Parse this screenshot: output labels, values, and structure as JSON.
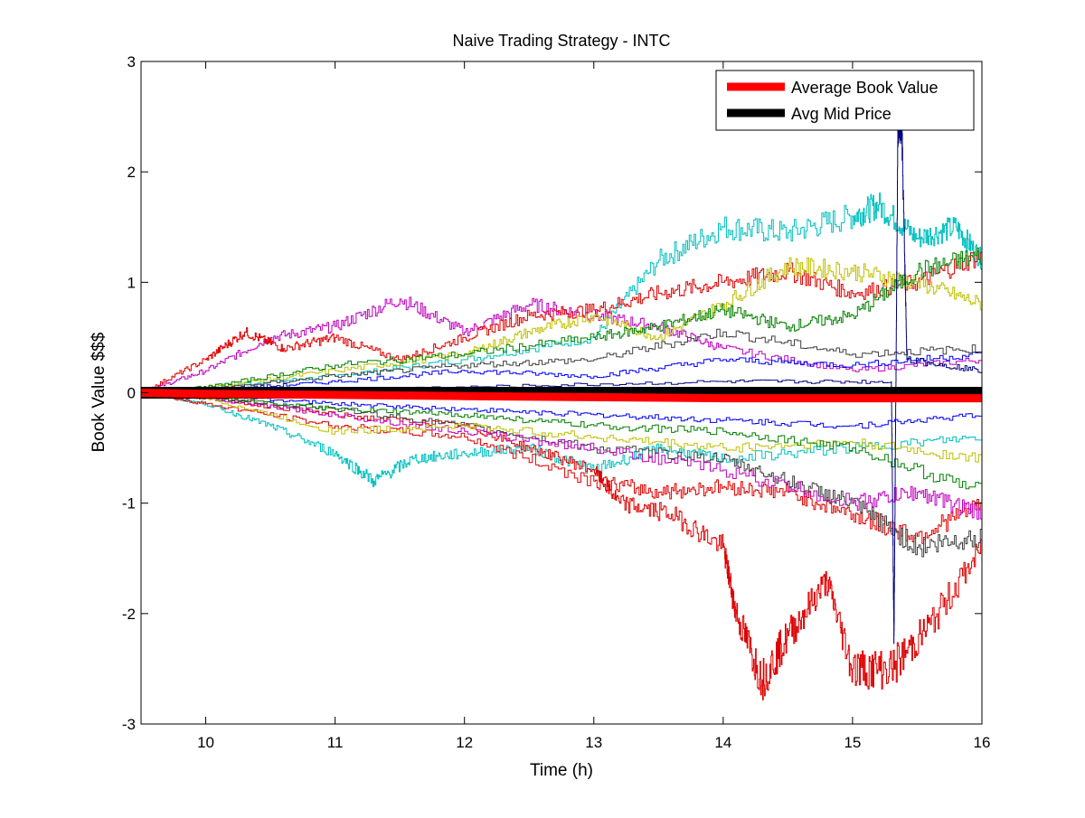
{
  "chart_data": {
    "type": "line",
    "title": "Naive Trading Strategy - INTC",
    "xlabel": "Time (h)",
    "ylabel": "Book Value $$$",
    "xlim": [
      9.5,
      16
    ],
    "ylim": [
      -3,
      3
    ],
    "xticks": [
      "10",
      "11",
      "12",
      "13",
      "14",
      "15",
      "16"
    ],
    "yticks": [
      "3",
      "2",
      "1",
      "0",
      "-1",
      "-2",
      "-3"
    ],
    "grid": false,
    "legend_position": "top-right",
    "legend": [
      {
        "label": "Average Book Value",
        "color": "#ff0000"
      },
      {
        "label": "Avg Mid Price",
        "color": "#000000"
      }
    ],
    "series": [
      {
        "name": "Average Book Value",
        "color": "#ff0000",
        "width": "thick",
        "x": [
          9.5,
          10,
          11,
          12,
          13,
          14,
          15,
          16
        ],
        "y": [
          0,
          -0.01,
          -0.02,
          -0.03,
          -0.04,
          -0.05,
          -0.05,
          -0.05
        ]
      },
      {
        "name": "Avg Mid Price",
        "color": "#000000",
        "width": "thick",
        "x": [
          9.5,
          16
        ],
        "y": [
          0,
          0
        ]
      },
      {
        "color": "#00bfbf",
        "x": [
          9.5,
          10,
          11,
          12,
          13,
          13.5,
          14,
          14.5,
          15,
          15.2,
          15.5,
          15.8,
          16
        ],
        "y": [
          0,
          0.05,
          0.15,
          0.3,
          0.5,
          1.2,
          1.5,
          1.45,
          1.6,
          1.7,
          1.4,
          1.5,
          1.2
        ]
      },
      {
        "color": "#bf00bf",
        "x": [
          9.5,
          10,
          10.5,
          11,
          11.5,
          12,
          12.5,
          13,
          13.5,
          14,
          15,
          16
        ],
        "y": [
          0,
          0.2,
          0.5,
          0.6,
          0.85,
          0.55,
          0.8,
          0.7,
          0.6,
          0.4,
          0.2,
          0.3
        ]
      },
      {
        "color": "#dd0000",
        "x": [
          9.5,
          10,
          10.3,
          10.6,
          11,
          11.5,
          12,
          12.5,
          13,
          13.5,
          14,
          14.5,
          15,
          15.5,
          16
        ],
        "y": [
          0,
          0.3,
          0.55,
          0.4,
          0.5,
          0.3,
          0.5,
          0.7,
          0.75,
          0.9,
          1.0,
          1.1,
          0.9,
          1.0,
          1.25
        ]
      },
      {
        "color": "#bfbf00",
        "x": [
          9.5,
          10,
          11,
          12,
          12.5,
          13,
          13.5,
          14,
          14.5,
          15,
          15.5,
          16
        ],
        "y": [
          0,
          0.05,
          0.2,
          0.35,
          0.55,
          0.7,
          0.5,
          0.8,
          1.15,
          1.1,
          1.0,
          0.8
        ]
      },
      {
        "color": "#008000",
        "x": [
          9.5,
          10,
          11,
          12,
          13,
          13.5,
          14,
          14.5,
          15,
          15.5,
          16
        ],
        "y": [
          0,
          0.05,
          0.25,
          0.35,
          0.5,
          0.6,
          0.75,
          0.6,
          0.7,
          1.1,
          1.25
        ]
      },
      {
        "color": "#0000ff",
        "x": [
          9.5,
          10,
          11,
          12,
          13,
          14,
          15,
          16
        ],
        "y": [
          0,
          0.02,
          0.1,
          0.2,
          0.15,
          0.3,
          0.25,
          0.35
        ]
      },
      {
        "color": "#404040",
        "x": [
          9.5,
          10,
          11,
          12,
          13,
          14,
          15,
          16
        ],
        "y": [
          0,
          0.03,
          0.15,
          0.25,
          0.3,
          0.55,
          0.35,
          0.4
        ]
      },
      {
        "color": "#00bfbf",
        "x": [
          9.5,
          10,
          10.5,
          11,
          11.3,
          11.6,
          12,
          12.5,
          13,
          13.5,
          14,
          15,
          16
        ],
        "y": [
          0,
          -0.1,
          -0.3,
          -0.55,
          -0.8,
          -0.6,
          -0.55,
          -0.5,
          -0.7,
          -0.5,
          -0.6,
          -0.5,
          -0.4
        ]
      },
      {
        "color": "#dd0000",
        "x": [
          9.5,
          10,
          11,
          12,
          12.5,
          13,
          13.2,
          13.6,
          14,
          14.1,
          14.3,
          14.5,
          14.8,
          15,
          15.3,
          15.6,
          16
        ],
        "y": [
          0,
          -0.05,
          -0.2,
          -0.3,
          -0.5,
          -0.7,
          -1.0,
          -1.1,
          -1.4,
          -2.0,
          -2.6,
          -2.2,
          -1.7,
          -2.5,
          -2.5,
          -2.1,
          -1.4
        ]
      },
      {
        "color": "#dd0000",
        "x": [
          9.5,
          10,
          11,
          12,
          13,
          13.5,
          14,
          14.5,
          15,
          15.5,
          16
        ],
        "y": [
          0,
          -0.1,
          -0.3,
          -0.4,
          -0.8,
          -0.9,
          -0.85,
          -0.9,
          -1.1,
          -1.3,
          -1.0
        ]
      },
      {
        "color": "#404040",
        "x": [
          9.5,
          10,
          11,
          12,
          13,
          14,
          14.5,
          15,
          15.5,
          16
        ],
        "y": [
          0,
          -0.05,
          -0.15,
          -0.3,
          -0.5,
          -0.6,
          -0.8,
          -1.0,
          -1.4,
          -1.3
        ]
      },
      {
        "color": "#bf00bf",
        "x": [
          9.5,
          10,
          11,
          12,
          13,
          14,
          15,
          15.5,
          16
        ],
        "y": [
          0,
          -0.05,
          -0.2,
          -0.35,
          -0.5,
          -0.7,
          -1.0,
          -0.9,
          -1.1
        ]
      },
      {
        "color": "#bfbf00",
        "x": [
          9.5,
          10,
          11,
          12,
          13,
          14,
          15,
          16
        ],
        "y": [
          0,
          -0.05,
          -0.35,
          -0.3,
          -0.4,
          -0.5,
          -0.45,
          -0.6
        ]
      },
      {
        "color": "#008000",
        "x": [
          9.5,
          10,
          11,
          12,
          13,
          14,
          15,
          16
        ],
        "y": [
          0,
          -0.03,
          -0.15,
          -0.2,
          -0.3,
          -0.35,
          -0.5,
          -0.9
        ]
      },
      {
        "color": "#000080",
        "x": [
          9.5,
          12,
          14,
          15.3,
          15.32,
          15.35,
          15.38,
          15.42,
          16
        ],
        "y": [
          0,
          0.05,
          0.1,
          0.1,
          -2.2,
          2.4,
          2.4,
          0.3,
          0.2
        ]
      },
      {
        "color": "#0000ff",
        "x": [
          9.5,
          10,
          11,
          12,
          13,
          14,
          15,
          16
        ],
        "y": [
          0,
          -0.02,
          -0.1,
          -0.15,
          -0.2,
          -0.25,
          -0.3,
          -0.2
        ]
      }
    ]
  }
}
